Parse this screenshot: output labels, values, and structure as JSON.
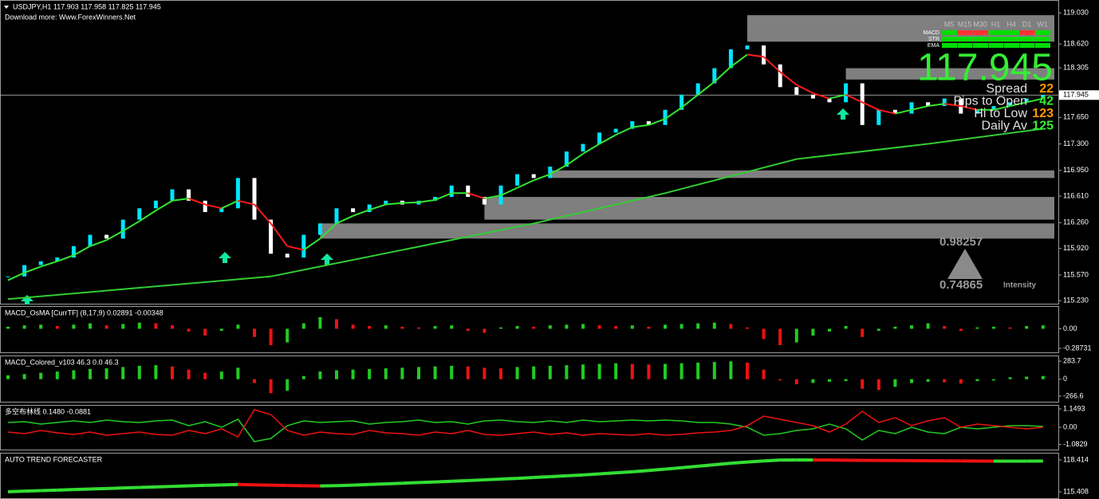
{
  "chart_data": [
    {
      "type": "candlestick",
      "title": "USDJPY,H1  117.903 117.958 117.825 117.945",
      "subtitle": "Download more: Www.ForexWinners.Net",
      "values": [
        115.55,
        115.7,
        115.75,
        115.8,
        115.95,
        116.1,
        116.05,
        116.3,
        116.45,
        116.55,
        116.7,
        116.55,
        116.4,
        116.45,
        116.85,
        116.3,
        115.85,
        115.8,
        116.1,
        116.25,
        116.45,
        116.4,
        116.5,
        116.55,
        116.5,
        116.55,
        116.6,
        116.75,
        116.6,
        116.5,
        116.75,
        116.9,
        116.85,
        117.0,
        117.2,
        117.3,
        117.45,
        117.5,
        117.6,
        117.55,
        117.75,
        117.95,
        118.1,
        118.3,
        118.55,
        118.6,
        118.35,
        118.05,
        117.95,
        117.9,
        117.85,
        118.1,
        117.55,
        117.75,
        117.7,
        117.85,
        117.8,
        117.9,
        117.7,
        117.75,
        117.8,
        117.85,
        117.9,
        117.945
      ],
      "color_up": "#00e5ff",
      "color_down": "#ffffff",
      "fast_ma": {
        "values": [
          115.5,
          115.6,
          115.68,
          115.75,
          115.83,
          115.95,
          116.03,
          116.15,
          116.28,
          116.42,
          116.55,
          116.58,
          116.5,
          116.45,
          116.55,
          116.5,
          116.25,
          115.95,
          115.9,
          116.05,
          116.25,
          116.35,
          116.43,
          116.5,
          116.52,
          116.53,
          116.56,
          116.65,
          116.65,
          116.58,
          116.62,
          116.72,
          116.82,
          116.9,
          117.02,
          117.17,
          117.3,
          117.42,
          117.52,
          117.55,
          117.63,
          117.78,
          117.95,
          118.12,
          118.32,
          118.48,
          118.45,
          118.25,
          118.08,
          117.97,
          117.9,
          117.95,
          117.85,
          117.75,
          117.7,
          117.75,
          117.8,
          117.83,
          117.8,
          117.75,
          117.75,
          117.8,
          117.85,
          117.9
        ],
        "color_up": "#33e633",
        "color_down": "#ff1a1a"
      },
      "slow_ma": {
        "x": [
          0,
          8,
          16,
          24,
          32,
          40,
          48,
          56,
          63
        ],
        "values": [
          115.25,
          115.4,
          115.55,
          115.9,
          116.25,
          116.65,
          117.1,
          117.3,
          117.5
        ],
        "color": "#33cc33"
      },
      "zones": [
        {
          "start": 45,
          "top": 119.0,
          "bottom": 118.65
        },
        {
          "start": 51,
          "top": 118.3,
          "bottom": 118.15
        },
        {
          "start": 33,
          "top": 116.95,
          "bottom": 116.85
        },
        {
          "start": 29,
          "top": 116.6,
          "bottom": 116.3
        },
        {
          "start": 19,
          "top": 116.25,
          "bottom": 116.05
        }
      ],
      "zone_color": "#7f7f7f",
      "current_price": 117.945,
      "ylim": [
        115.19,
        119.19
      ],
      "yticks": [
        {
          "value": 119.03,
          "label": "119.030"
        },
        {
          "value": 118.62,
          "label": "118.620"
        },
        {
          "value": 118.305,
          "label": "118.305"
        },
        {
          "value": 117.65,
          "label": "117.650"
        },
        {
          "value": 117.3,
          "label": "117.300"
        },
        {
          "value": 116.95,
          "label": "116.950"
        },
        {
          "value": 116.61,
          "label": "116.610"
        },
        {
          "value": 116.26,
          "label": "116.260"
        },
        {
          "value": 115.92,
          "label": "115.920"
        },
        {
          "value": 115.57,
          "label": "115.570"
        },
        {
          "value": 115.23,
          "label": "115.230"
        }
      ]
    },
    {
      "type": "bar",
      "title": "MACD_OsMA [CurrTF] (8,17,9) 0.02891 -0.00348",
      "values": [
        0.03,
        0.05,
        0.06,
        0.04,
        0.06,
        0.08,
        0.05,
        0.07,
        0.09,
        0.08,
        0.05,
        -0.04,
        -0.1,
        -0.03,
        0.06,
        -0.12,
        -0.24,
        -0.2,
        0.08,
        0.17,
        0.14,
        0.06,
        0.04,
        0.05,
        0.03,
        0.02,
        0.04,
        0.05,
        -0.03,
        -0.06,
        0.02,
        0.04,
        0.03,
        0.05,
        0.06,
        0.07,
        0.05,
        0.04,
        0.05,
        0.03,
        0.06,
        0.07,
        0.08,
        0.09,
        0.07,
        0.02,
        -0.15,
        -0.24,
        -0.2,
        -0.1,
        -0.04,
        0.04,
        -0.12,
        -0.03,
        0.03,
        0.05,
        0.08,
        0.04,
        -0.03,
        0.02,
        0.03,
        0.02,
        0.04,
        0.05
      ],
      "color_up": "#22cc22",
      "color_down": "#ee1111",
      "ylim": [
        -0.345,
        0.32
      ],
      "yticks": [
        {
          "value": 0,
          "label": "0.00"
        },
        {
          "value": -0.28731,
          "label": "-0.28731"
        }
      ]
    },
    {
      "type": "bar",
      "title": "MACD_Colored_v103 46.3 0.0 46.3",
      "values": [
        60,
        80,
        100,
        120,
        140,
        160,
        170,
        190,
        210,
        220,
        200,
        150,
        100,
        120,
        180,
        -60,
        -220,
        -180,
        50,
        120,
        140,
        150,
        160,
        170,
        180,
        190,
        200,
        210,
        200,
        180,
        170,
        190,
        200,
        210,
        220,
        230,
        240,
        250,
        240,
        230,
        240,
        250,
        260,
        270,
        280,
        260,
        150,
        -20,
        -80,
        -60,
        -40,
        -30,
        -150,
        -170,
        -120,
        -60,
        -40,
        -50,
        -70,
        -30,
        -20,
        30,
        40,
        50
      ],
      "color_up": "#22cc22",
      "color_down": "#ee1111",
      "ylim": [
        -354,
        358.7
      ],
      "yticks": [
        283.7,
        0,
        -266.6
      ]
    },
    {
      "type": "line",
      "title": "多空布林线 0.1480 -0.0881",
      "series": [
        {
          "color": "#22cc22",
          "values": [
            0.3,
            0.35,
            0.2,
            0.3,
            0.4,
            0.3,
            0.45,
            0.35,
            0.3,
            0.4,
            0.45,
            0.1,
            0.35,
            0.0,
            0.5,
            -0.9,
            -0.7,
            0.1,
            0.4,
            0.3,
            0.35,
            0.4,
            0.2,
            0.3,
            0.35,
            0.45,
            0.3,
            0.35,
            0.2,
            0.4,
            0.45,
            0.35,
            0.3,
            0.4,
            0.3,
            0.45,
            0.35,
            0.4,
            0.45,
            0.4,
            0.45,
            0.4,
            0.3,
            0.3,
            0.2,
            0.0,
            -0.5,
            -0.4,
            -0.2,
            -0.1,
            0.2,
            -0.1,
            -0.8,
            -0.2,
            -0.4,
            0.0,
            -0.3,
            -0.4,
            0.0,
            -0.1,
            0.0,
            0.1,
            0.1,
            0.05
          ]
        },
        {
          "color": "#ee1111",
          "values": [
            -0.3,
            -0.4,
            -0.2,
            -0.35,
            -0.45,
            -0.3,
            -0.5,
            -0.4,
            -0.3,
            -0.45,
            -0.5,
            -0.2,
            -0.4,
            -0.1,
            -0.6,
            1.1,
            0.8,
            -0.2,
            -0.5,
            -0.3,
            -0.4,
            -0.45,
            -0.2,
            -0.35,
            -0.4,
            -0.5,
            -0.3,
            -0.4,
            -0.2,
            -0.45,
            -0.5,
            -0.4,
            -0.3,
            -0.45,
            -0.35,
            -0.5,
            -0.4,
            -0.45,
            -0.5,
            -0.4,
            -0.5,
            -0.45,
            -0.35,
            -0.3,
            -0.2,
            0.1,
            0.7,
            0.5,
            0.3,
            0.1,
            -0.3,
            0.2,
            1.0,
            0.3,
            0.6,
            0.1,
            0.4,
            0.6,
            0.0,
            0.2,
            0.1,
            0.0,
            -0.1,
            0.0
          ]
        }
      ],
      "ylim": [
        -1.4,
        1.35
      ],
      "yticks": [
        1.1493,
        {
          "value": 0,
          "label": "0.00"
        },
        -1.0829
      ]
    },
    {
      "type": "line",
      "title": "AUTO TREND FORECASTER",
      "values": [
        115.42,
        115.47,
        115.52,
        115.57,
        115.62,
        115.67,
        115.72,
        115.77,
        115.82,
        115.87,
        115.92,
        115.97,
        116.02,
        116.06,
        116.1,
        116.07,
        116.04,
        116.01,
        115.98,
        115.96,
        115.99,
        116.04,
        116.1,
        116.16,
        116.22,
        116.28,
        116.34,
        116.4,
        116.47,
        116.54,
        116.61,
        116.68,
        116.76,
        116.84,
        116.92,
        117.0,
        117.1,
        117.2,
        117.3,
        117.42,
        117.55,
        117.68,
        117.82,
        117.96,
        118.1,
        118.22,
        118.32,
        118.4,
        118.41,
        118.41,
        118.4,
        118.39,
        118.38,
        118.37,
        118.36,
        118.35,
        118.34,
        118.33,
        118.32,
        118.31,
        118.3,
        118.3,
        118.3,
        118.31
      ],
      "color_up": "#33dd33",
      "color_down": "#ee1111",
      "ylim": [
        114.807,
        119.015
      ],
      "yticks": [
        118.414,
        115.408
      ]
    }
  ],
  "info_panel": {
    "rows": [
      {
        "label": "Spread",
        "value": 22,
        "color": "#ff9900"
      },
      {
        "label": "Pips to Open",
        "value": 42,
        "color": "#33ee33"
      },
      {
        "label": "Hi to Low",
        "value": 123,
        "color": "#ff9900"
      },
      {
        "label": "Daily Av",
        "value": 125,
        "color": "#33ee33"
      }
    ],
    "timeframes": [
      "M5",
      "M15",
      "M30",
      "H1",
      "H4",
      "D1",
      "W1"
    ],
    "signals": [
      {
        "name": "MACD",
        "colors": [
          "#00dd00",
          "#ff3333",
          "#ff3333",
          "#00dd00",
          "#00dd00",
          "#ff3333",
          "#00dd00"
        ]
      },
      {
        "name": "STR",
        "colors": [
          "#00dd00",
          "#00dd00",
          "#00dd00",
          "#00dd00",
          "#00dd00",
          "#00dd00",
          "#00dd00"
        ]
      },
      {
        "name": "EMA",
        "colors": [
          "#00dd00",
          "#00dd00",
          "#00dd00",
          "#00dd00",
          "#00dd00",
          "#00dd00",
          "#00dd00"
        ]
      }
    ],
    "overlay_labels": [
      "0.98257",
      "0.74865",
      "Intensity"
    ]
  }
}
